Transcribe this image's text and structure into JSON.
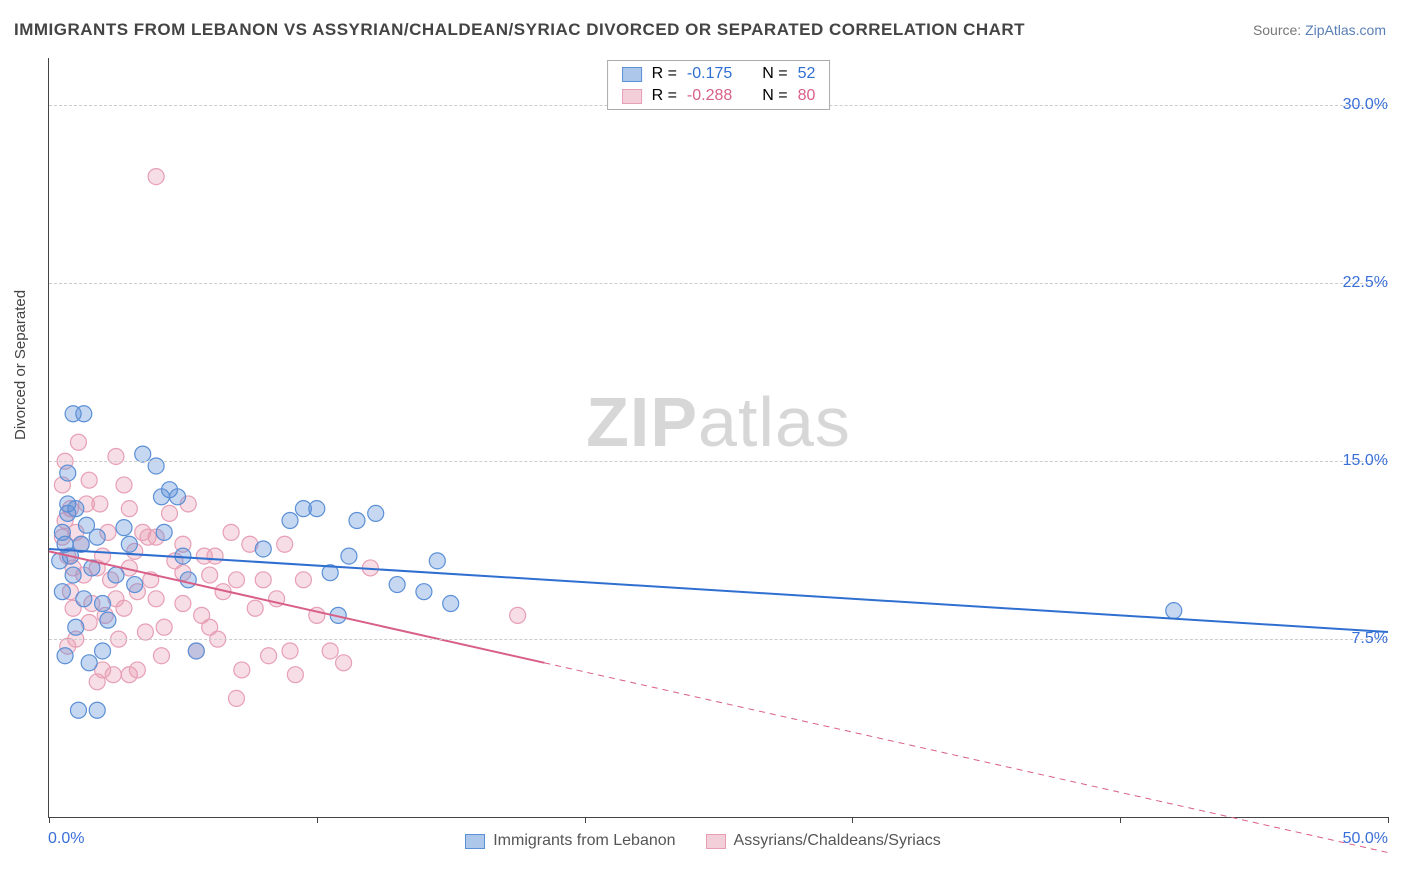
{
  "title": "IMMIGRANTS FROM LEBANON VS ASSYRIAN/CHALDEAN/SYRIAC DIVORCED OR SEPARATED CORRELATION CHART",
  "source": {
    "label": "Source: ",
    "site": "ZipAtlas.com"
  },
  "ylabel": "Divorced or Separated",
  "watermark": {
    "bold": "ZIP",
    "rest": "atlas"
  },
  "chart": {
    "type": "scatter",
    "xlim": [
      0,
      50
    ],
    "ylim": [
      0,
      32
    ],
    "x_ticks": [
      0,
      10,
      20,
      30,
      40,
      50
    ],
    "y_gridlines": [
      7.5,
      15.0,
      22.5,
      30.0
    ],
    "y_tick_labels": [
      "7.5%",
      "15.0%",
      "22.5%",
      "30.0%"
    ],
    "x_min_label": "0.0%",
    "x_max_label": "50.0%",
    "x_label_color": "#3a6fd8",
    "y_label_color": "#3a6fd8",
    "background_color": "#ffffff",
    "grid_color": "#cfcfcf",
    "axis_color": "#444444",
    "marker_radius": 8,
    "marker_fill_opacity": 0.35,
    "line_width": 2
  },
  "series": {
    "blue": {
      "label": "Immigrants from Lebanon",
      "color": "#5b8fd6",
      "line_color": "#2f6fd0",
      "R": "-0.175",
      "N": "52",
      "trend": {
        "x1": 0,
        "y1": 11.3,
        "x2": 50,
        "y2": 7.8
      },
      "points": [
        [
          0.5,
          12.0
        ],
        [
          0.6,
          11.5
        ],
        [
          0.7,
          13.2
        ],
        [
          0.4,
          10.8
        ],
        [
          0.8,
          11.0
        ],
        [
          0.5,
          9.5
        ],
        [
          0.7,
          12.8
        ],
        [
          0.9,
          17.0
        ],
        [
          1.3,
          17.0
        ],
        [
          1.0,
          13.0
        ],
        [
          1.2,
          11.5
        ],
        [
          1.4,
          12.3
        ],
        [
          1.6,
          10.5
        ],
        [
          1.8,
          11.8
        ],
        [
          2.0,
          9.0
        ],
        [
          2.2,
          8.3
        ],
        [
          2.0,
          7.0
        ],
        [
          1.5,
          6.5
        ],
        [
          1.1,
          4.5
        ],
        [
          1.8,
          4.5
        ],
        [
          0.6,
          6.8
        ],
        [
          1.0,
          8.0
        ],
        [
          1.3,
          9.2
        ],
        [
          2.5,
          10.2
        ],
        [
          2.8,
          12.2
        ],
        [
          3.0,
          11.5
        ],
        [
          3.2,
          9.8
        ],
        [
          3.5,
          15.3
        ],
        [
          4.0,
          14.8
        ],
        [
          4.2,
          13.5
        ],
        [
          4.5,
          13.8
        ],
        [
          4.8,
          13.5
        ],
        [
          4.3,
          12.0
        ],
        [
          5.0,
          11.0
        ],
        [
          5.2,
          10.0
        ],
        [
          5.5,
          7.0
        ],
        [
          8.0,
          11.3
        ],
        [
          9.0,
          12.5
        ],
        [
          9.5,
          13.0
        ],
        [
          10.0,
          13.0
        ],
        [
          11.5,
          12.5
        ],
        [
          12.2,
          12.8
        ],
        [
          10.8,
          8.5
        ],
        [
          13.0,
          9.8
        ],
        [
          14.0,
          9.5
        ],
        [
          14.5,
          10.8
        ],
        [
          15.0,
          9.0
        ],
        [
          11.2,
          11.0
        ],
        [
          10.5,
          10.3
        ],
        [
          42.0,
          8.7
        ],
        [
          0.7,
          14.5
        ],
        [
          0.9,
          10.2
        ]
      ]
    },
    "pink": {
      "label": "Assyrians/Chaldeans/Syriacs",
      "color": "#e79fb5",
      "line_color": "#d85f87",
      "R": "-0.288",
      "N": "80",
      "trend_solid": {
        "x1": 0,
        "y1": 11.2,
        "x2": 18.5,
        "y2": 6.5
      },
      "trend_dash": {
        "x1": 18.5,
        "y1": 6.5,
        "x2": 50,
        "y2": -1.5
      },
      "points": [
        [
          0.5,
          11.8
        ],
        [
          0.6,
          12.5
        ],
        [
          0.7,
          11.0
        ],
        [
          0.8,
          13.0
        ],
        [
          0.9,
          10.5
        ],
        [
          0.5,
          14.0
        ],
        [
          0.6,
          15.0
        ],
        [
          0.8,
          9.5
        ],
        [
          1.0,
          12.0
        ],
        [
          1.1,
          15.8
        ],
        [
          1.2,
          11.5
        ],
        [
          1.3,
          10.2
        ],
        [
          1.4,
          13.2
        ],
        [
          1.5,
          14.2
        ],
        [
          1.6,
          9.0
        ],
        [
          1.8,
          10.5
        ],
        [
          1.9,
          13.2
        ],
        [
          2.0,
          11.0
        ],
        [
          2.1,
          8.5
        ],
        [
          2.2,
          12.0
        ],
        [
          2.3,
          10.0
        ],
        [
          2.5,
          15.2
        ],
        [
          2.6,
          7.5
        ],
        [
          2.8,
          8.8
        ],
        [
          2.8,
          14.0
        ],
        [
          3.0,
          10.5
        ],
        [
          3.0,
          13.0
        ],
        [
          3.2,
          11.2
        ],
        [
          3.3,
          9.5
        ],
        [
          3.5,
          12.0
        ],
        [
          3.6,
          7.8
        ],
        [
          3.8,
          10.0
        ],
        [
          4.0,
          9.2
        ],
        [
          4.0,
          11.8
        ],
        [
          4.2,
          6.8
        ],
        [
          4.3,
          8.0
        ],
        [
          4.5,
          12.8
        ],
        [
          4.7,
          10.8
        ],
        [
          5.0,
          9.0
        ],
        [
          5.0,
          11.5
        ],
        [
          5.2,
          13.2
        ],
        [
          5.5,
          7.0
        ],
        [
          5.7,
          8.5
        ],
        [
          5.8,
          11.0
        ],
        [
          6.0,
          10.2
        ],
        [
          6.0,
          8.0
        ],
        [
          6.2,
          11.0
        ],
        [
          6.5,
          9.5
        ],
        [
          6.8,
          12.0
        ],
        [
          7.0,
          10.0
        ],
        [
          7.2,
          6.2
        ],
        [
          7.5,
          11.5
        ],
        [
          7.7,
          8.8
        ],
        [
          8.0,
          10.0
        ],
        [
          8.2,
          6.8
        ],
        [
          8.5,
          9.2
        ],
        [
          9.0,
          7.0
        ],
        [
          9.2,
          6.0
        ],
        [
          9.5,
          10.0
        ],
        [
          10.0,
          8.5
        ],
        [
          10.5,
          7.0
        ],
        [
          11.0,
          6.5
        ],
        [
          12.0,
          10.5
        ],
        [
          2.0,
          6.2
        ],
        [
          2.4,
          6.0
        ],
        [
          3.0,
          6.0
        ],
        [
          3.3,
          6.2
        ],
        [
          1.8,
          5.7
        ],
        [
          1.5,
          8.2
        ],
        [
          1.0,
          7.5
        ],
        [
          0.9,
          8.8
        ],
        [
          0.7,
          7.2
        ],
        [
          7.0,
          5.0
        ],
        [
          4.0,
          27.0
        ],
        [
          5.0,
          10.3
        ],
        [
          6.3,
          7.5
        ],
        [
          8.8,
          11.5
        ],
        [
          17.5,
          8.5
        ],
        [
          2.5,
          9.2
        ],
        [
          3.7,
          11.8
        ]
      ]
    }
  },
  "legend_top_labels": {
    "R_prefix": "R = ",
    "N_prefix": "N = "
  },
  "legend_bottom": [
    {
      "key": "blue"
    },
    {
      "key": "pink"
    }
  ]
}
